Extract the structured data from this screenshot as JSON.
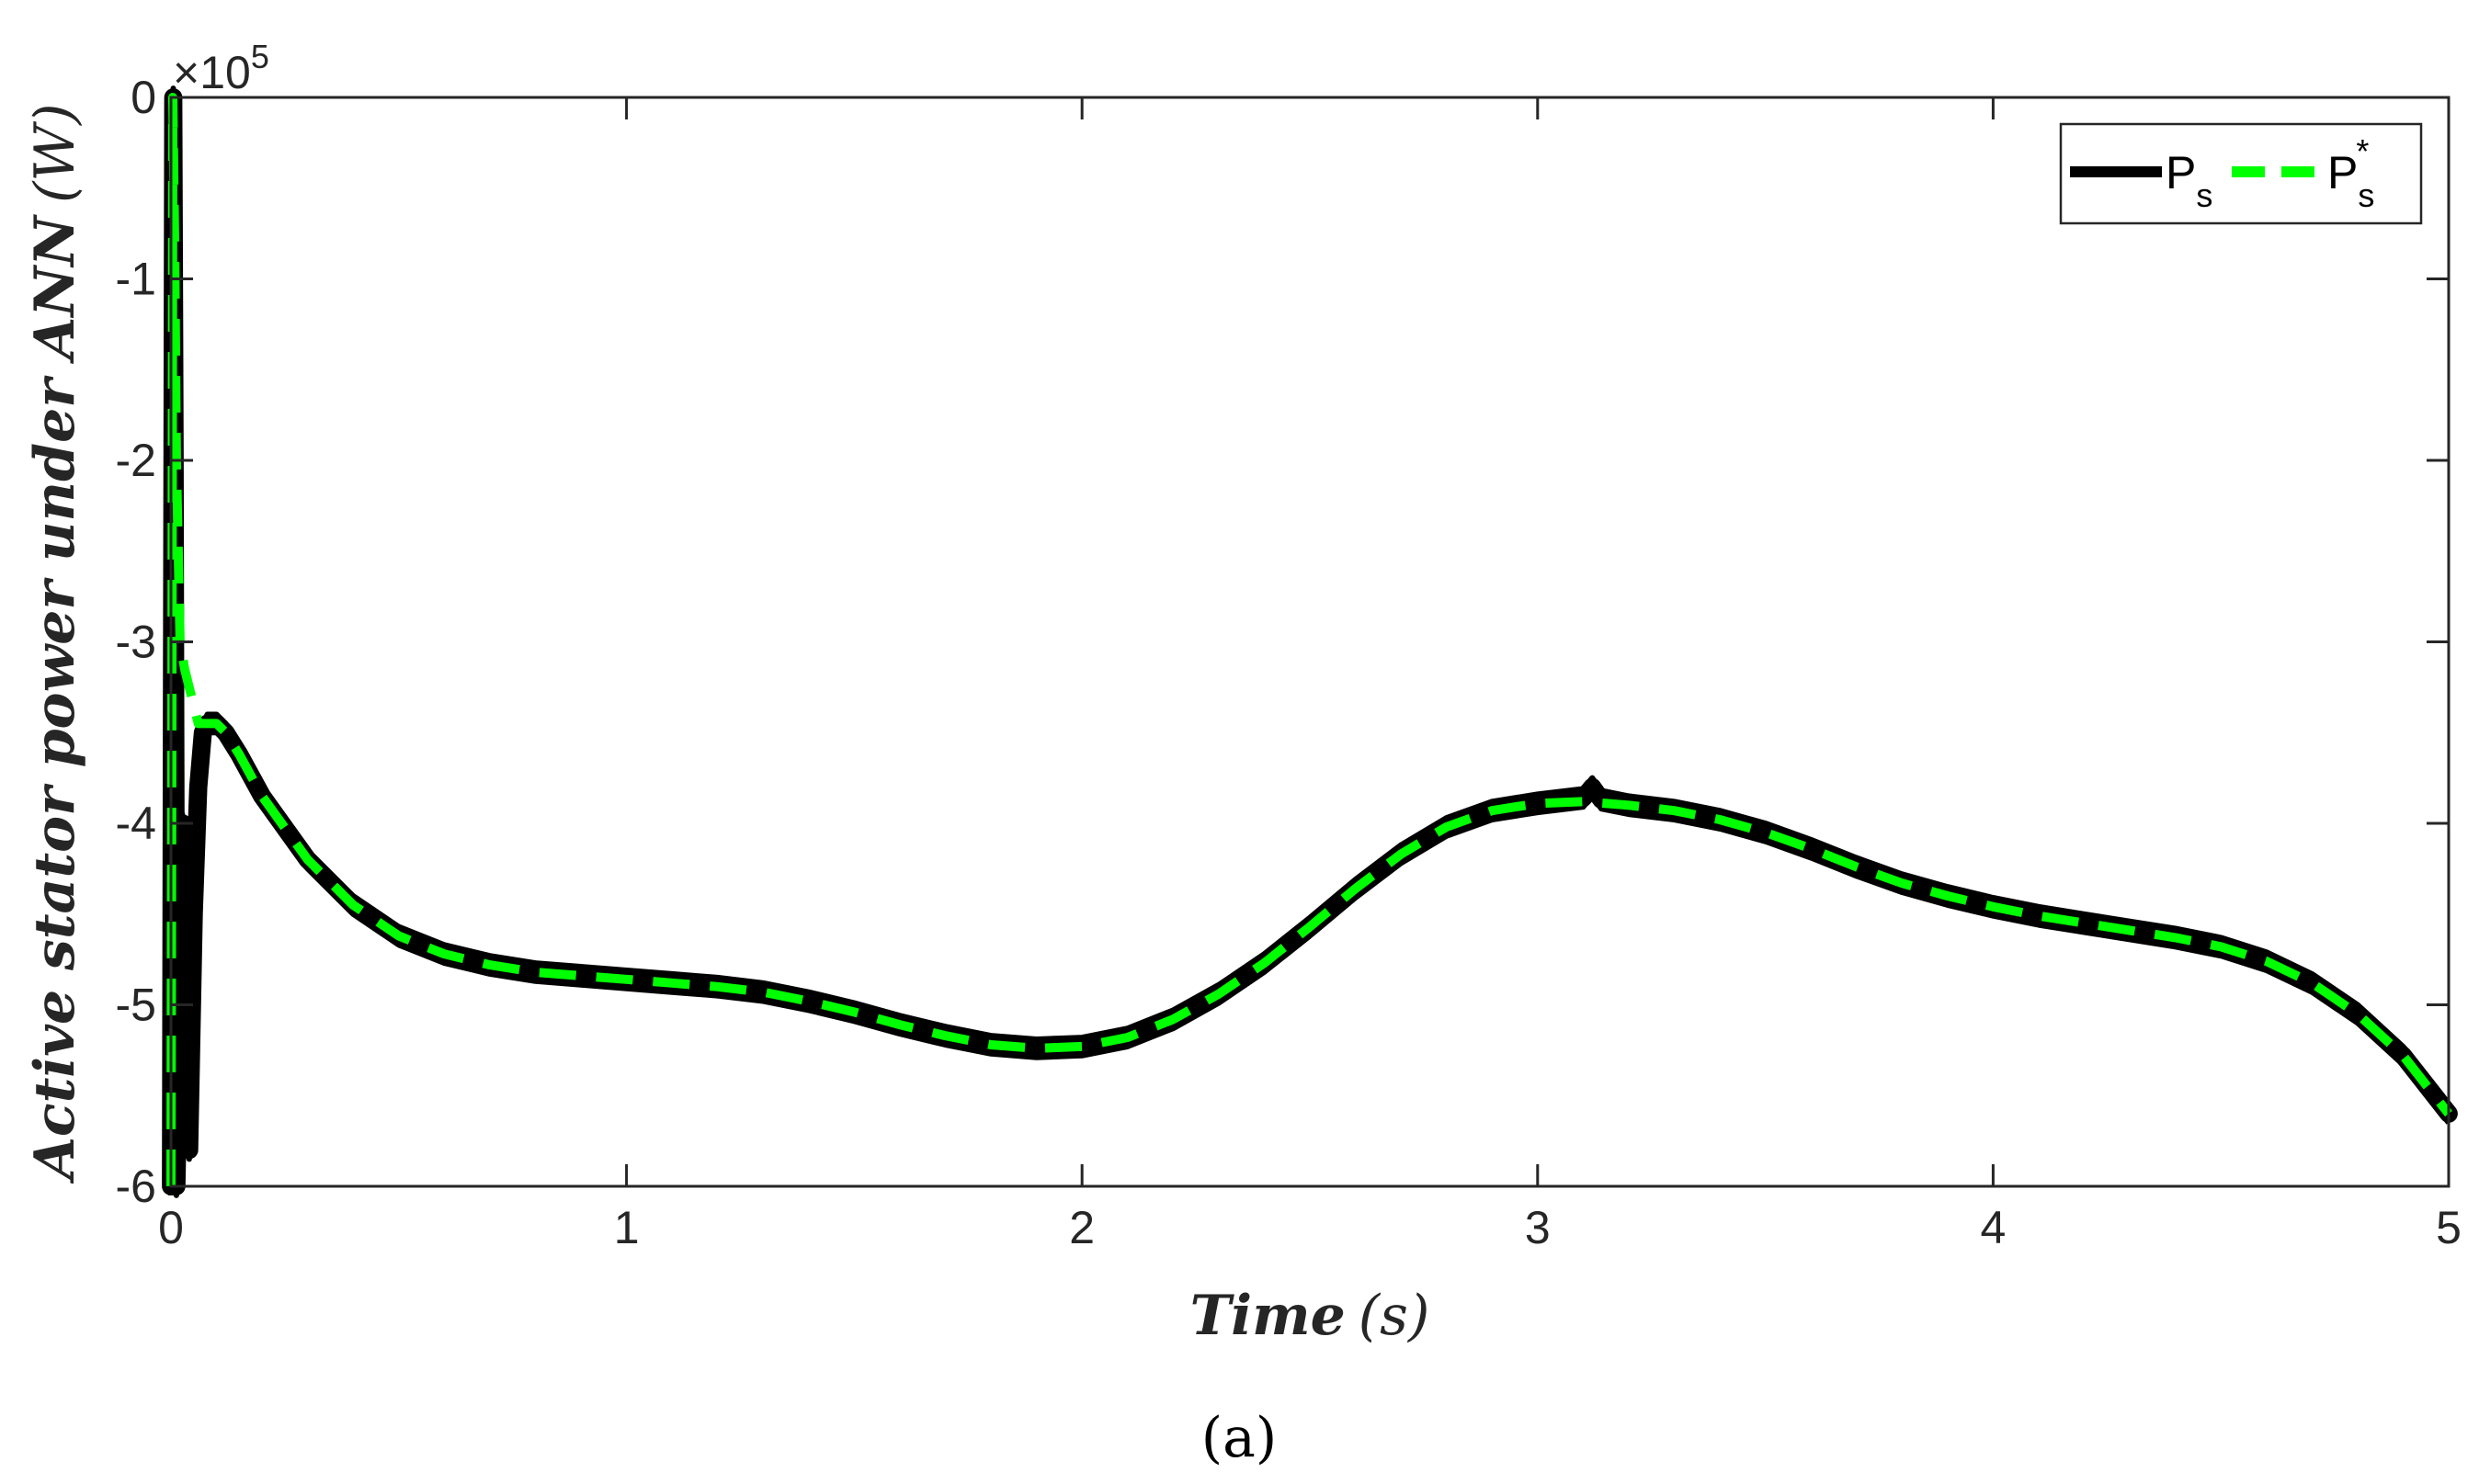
{
  "chart_data": {
    "type": "line",
    "title": "",
    "xlabel": "Time",
    "xlabel_unit": "(s)",
    "ylabel": "Active stator power under ANN",
    "ylabel_unit": "(W)",
    "y_exponent": "×10^5",
    "y_exponent_base": "×10",
    "y_exponent_power": "5",
    "xlim": [
      0,
      5
    ],
    "ylim": [
      -6,
      0
    ],
    "xticks": [
      0,
      1,
      2,
      3,
      4,
      5
    ],
    "yticks": [
      0,
      -1,
      -2,
      -3,
      -4,
      -5,
      -6
    ],
    "xtick_labels": [
      "0",
      "1",
      "2",
      "3",
      "4",
      "5"
    ],
    "ytick_labels": [
      "0",
      "-1",
      "-2",
      "-3",
      "-4",
      "-5",
      "-6"
    ],
    "grid": false,
    "legend_position": "top-right",
    "caption": "(a)",
    "series": [
      {
        "name": "P",
        "name_sub": "s",
        "name_sup": "",
        "color": "#000000",
        "style": "solid",
        "band_width": 0.1,
        "x": [
          0,
          0.002,
          0.005,
          0.008,
          0.012,
          0.016,
          0.02,
          0.025,
          0.03,
          0.04,
          0.05,
          0.06,
          0.07,
          0.08,
          0.1,
          0.12,
          0.15,
          0.2,
          0.3,
          0.4,
          0.5,
          0.6,
          0.7,
          0.8,
          0.9,
          1.0,
          1.1,
          1.2,
          1.3,
          1.4,
          1.5,
          1.6,
          1.7,
          1.8,
          1.9,
          2.0,
          2.1,
          2.2,
          2.3,
          2.4,
          2.5,
          2.6,
          2.7,
          2.8,
          2.9,
          3.0,
          3.1,
          3.12,
          3.14,
          3.2,
          3.3,
          3.4,
          3.5,
          3.6,
          3.7,
          3.8,
          3.9,
          4.0,
          4.1,
          4.2,
          4.3,
          4.4,
          4.5,
          4.6,
          4.7,
          4.8,
          4.9,
          5.0
        ],
        "y": [
          -6.0,
          -3.5,
          0.0,
          -2.0,
          -6.0,
          -5.5,
          -5.0,
          -4.0,
          -5.6,
          -5.8,
          -4.5,
          -3.8,
          -3.5,
          -3.45,
          -3.45,
          -3.5,
          -3.62,
          -3.85,
          -4.2,
          -4.45,
          -4.62,
          -4.72,
          -4.78,
          -4.82,
          -4.84,
          -4.86,
          -4.88,
          -4.9,
          -4.93,
          -4.98,
          -5.04,
          -5.11,
          -5.17,
          -5.22,
          -5.24,
          -5.23,
          -5.18,
          -5.08,
          -4.94,
          -4.77,
          -4.57,
          -4.36,
          -4.17,
          -4.02,
          -3.93,
          -3.89,
          -3.86,
          -3.8,
          -3.87,
          -3.9,
          -3.93,
          -3.98,
          -4.05,
          -4.14,
          -4.24,
          -4.33,
          -4.4,
          -4.46,
          -4.51,
          -4.55,
          -4.59,
          -4.63,
          -4.68,
          -4.76,
          -4.88,
          -5.05,
          -5.28,
          -5.6
        ]
      },
      {
        "name": "P",
        "name_sub": "s",
        "name_sup": "*",
        "color": "#00ff00",
        "style": "dashed",
        "x": [
          0,
          0.002,
          0.004,
          0.008,
          0.012,
          0.016,
          0.02,
          0.03,
          0.04,
          0.05,
          0.06,
          0.08,
          0.1,
          0.12,
          0.15,
          0.2,
          0.3,
          0.4,
          0.5,
          0.6,
          0.7,
          0.8,
          0.9,
          1.0,
          1.1,
          1.2,
          1.3,
          1.4,
          1.5,
          1.6,
          1.7,
          1.8,
          1.9,
          2.0,
          2.1,
          2.2,
          2.3,
          2.4,
          2.5,
          2.6,
          2.7,
          2.8,
          2.9,
          3.0,
          3.1,
          3.2,
          3.3,
          3.4,
          3.5,
          3.6,
          3.7,
          3.8,
          3.9,
          4.0,
          4.1,
          4.2,
          4.3,
          4.4,
          4.5,
          4.6,
          4.7,
          4.8,
          4.9,
          5.0
        ],
        "y": [
          -6.0,
          -3.5,
          0.0,
          -0.8,
          -2.0,
          -2.5,
          -3.0,
          -3.15,
          -3.25,
          -3.35,
          -3.45,
          -3.45,
          -3.45,
          -3.5,
          -3.62,
          -3.85,
          -4.2,
          -4.45,
          -4.62,
          -4.72,
          -4.78,
          -4.82,
          -4.84,
          -4.86,
          -4.88,
          -4.9,
          -4.93,
          -4.98,
          -5.04,
          -5.11,
          -5.17,
          -5.22,
          -5.24,
          -5.23,
          -5.18,
          -5.08,
          -4.94,
          -4.77,
          -4.57,
          -4.36,
          -4.17,
          -4.02,
          -3.93,
          -3.89,
          -3.88,
          -3.9,
          -3.93,
          -3.98,
          -4.05,
          -4.14,
          -4.24,
          -4.33,
          -4.4,
          -4.46,
          -4.51,
          -4.55,
          -4.59,
          -4.63,
          -4.68,
          -4.76,
          -4.88,
          -5.05,
          -5.28,
          -5.6
        ]
      }
    ]
  }
}
